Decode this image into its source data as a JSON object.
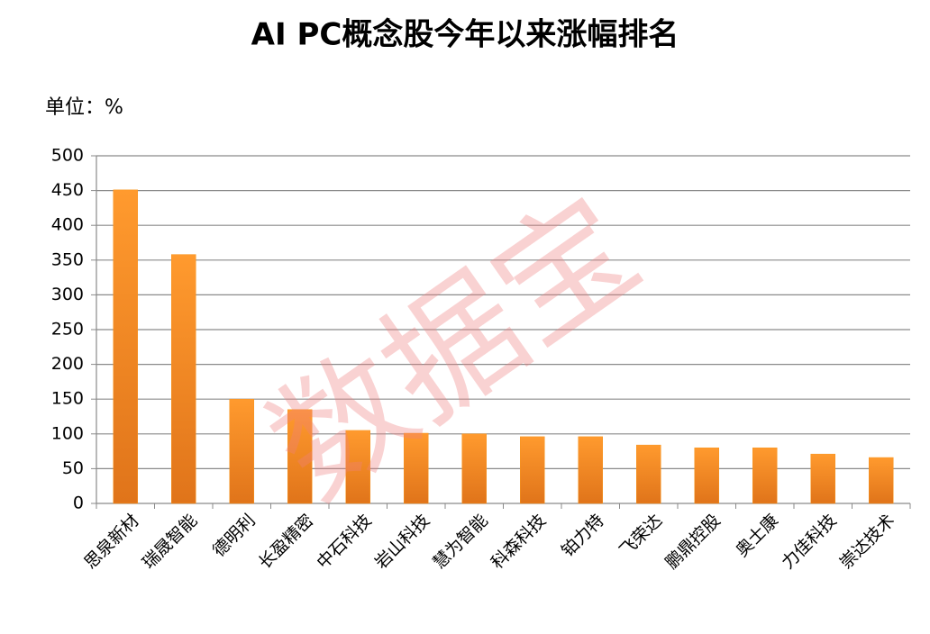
{
  "chart_data": {
    "type": "bar",
    "title": "AI PC概念股今年以来涨幅排名",
    "unit_label": "单位：%",
    "watermark": "数据宝",
    "categories": [
      "思泉新材",
      "瑞晟智能",
      "德明利",
      "长盈精密",
      "中石科技",
      "岩山科技",
      "慧为智能",
      "科森科技",
      "铂力特",
      "飞荣达",
      "鹏鼎控股",
      "奥士康",
      "力佳科技",
      "崇达技术"
    ],
    "values": [
      451,
      358,
      150,
      135,
      105,
      101,
      100,
      96,
      96,
      84,
      80,
      80,
      71,
      66
    ],
    "color": "#f7941d",
    "ylim": [
      0,
      500
    ],
    "yticks": [
      0,
      50,
      100,
      150,
      200,
      250,
      300,
      350,
      400,
      450,
      500
    ],
    "grid": true
  }
}
